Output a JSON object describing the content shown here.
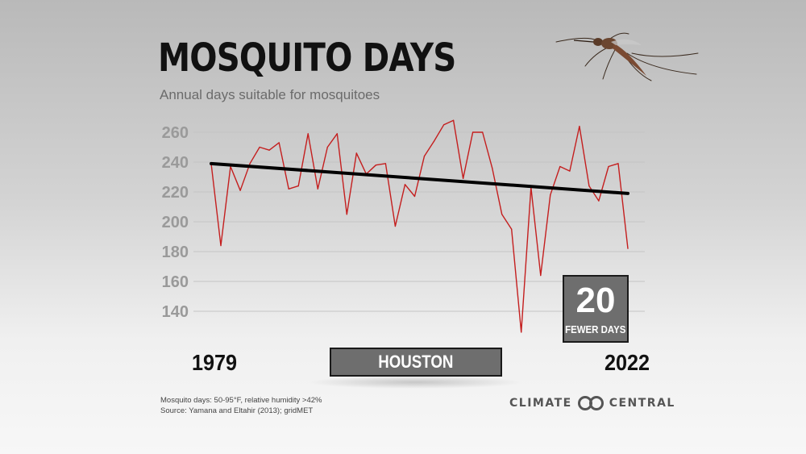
{
  "header": {
    "title": "MOSQUITO DAYS",
    "subtitle": "Annual days suitable for mosquitoes"
  },
  "chart_data": {
    "type": "line",
    "x": [
      1979,
      1980,
      1981,
      1982,
      1983,
      1984,
      1985,
      1986,
      1987,
      1988,
      1989,
      1990,
      1991,
      1992,
      1993,
      1994,
      1995,
      1996,
      1997,
      1998,
      1999,
      2000,
      2001,
      2002,
      2003,
      2004,
      2005,
      2006,
      2007,
      2008,
      2009,
      2010,
      2011,
      2012,
      2013,
      2014,
      2015,
      2016,
      2017,
      2018,
      2019,
      2020,
      2021,
      2022
    ],
    "series": [
      {
        "values": [
          239,
          184,
          237,
          221,
          239,
          250,
          248,
          253,
          222,
          224,
          259,
          222,
          250,
          259,
          205,
          246,
          232,
          238,
          239,
          197,
          225,
          217,
          244,
          254,
          265,
          268,
          229,
          260,
          260,
          236,
          205,
          195,
          126,
          223,
          164,
          218,
          237,
          234,
          264,
          224,
          214,
          237,
          239,
          182
        ],
        "color": "#c41e1e"
      },
      {
        "values_at_ends": [
          239,
          219
        ],
        "color": "#000000"
      }
    ],
    "yticks": [
      140,
      160,
      180,
      200,
      220,
      240,
      260
    ],
    "ylim": [
      120,
      270
    ],
    "xlim": [
      1979,
      2022
    ],
    "x_start_label": "1979",
    "x_end_label": "2022",
    "grid": true,
    "location": "HOUSTON",
    "callout": {
      "number": "20",
      "text": "FEWER DAYS"
    }
  },
  "footer": {
    "note_line1": "Mosquito days: 50-95°F, relative humidity >42%",
    "note_line2": "Source: Yamana and Eltahir (2013); gridMET",
    "logo_left": "CLIMATE",
    "logo_right": "CENTRAL"
  },
  "colors": {
    "data_line": "#c41e1e",
    "trend_line": "#000000",
    "box_fill": "#6e6e6e",
    "tick_text": "#9a9a9a",
    "grid": "#c4c4c4"
  },
  "icons": {
    "mosquito": "mosquito-icon",
    "logo": "climate-central-logo-icon"
  }
}
